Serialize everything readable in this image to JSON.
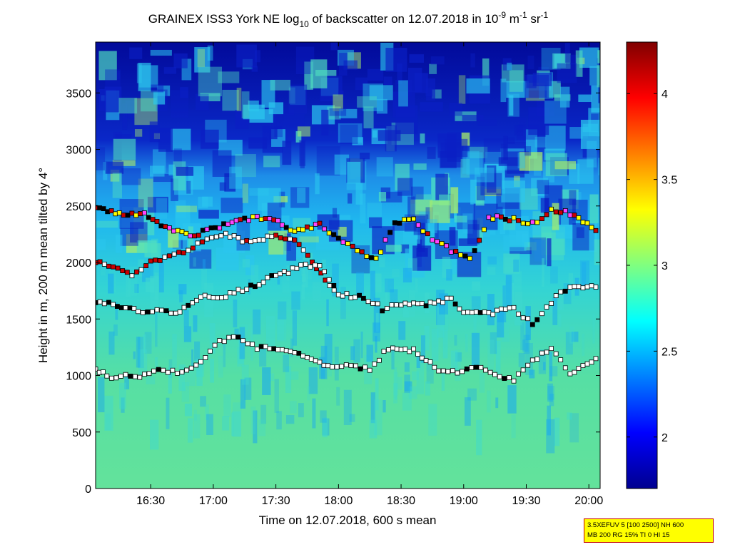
{
  "chart_data": {
    "type": "heatmap",
    "title": {
      "part1": "GRAINEX ISS3 York NE log",
      "sub1": "10",
      "part2": " of backscatter on 12.07.2018 in 10",
      "sup1": "-9",
      "part3": " m",
      "sup2": "-1",
      "part4": " sr",
      "sup3": "-1"
    },
    "xlabel": "Time on 12.07.2018, 600 s mean",
    "ylabel": "Height in m, 200 m mean tilted by 4°",
    "x_ticks": [
      "16:30",
      "17:00",
      "17:30",
      "18:00",
      "18:30",
      "19:00",
      "19:30",
      "20:00"
    ],
    "x_tick_hours": [
      16.5,
      17.0,
      17.5,
      18.0,
      18.5,
      19.0,
      19.5,
      20.0
    ],
    "xlim_hours": [
      16.06,
      20.09
    ],
    "y_ticks": [
      0,
      500,
      1000,
      1500,
      2000,
      2500,
      3000,
      3500
    ],
    "ylim": [
      0,
      3950
    ],
    "colorbar": {
      "ticks": [
        2,
        2.5,
        3,
        3.5,
        4
      ],
      "tick_labels": [
        "2",
        "2.5",
        "3",
        "3.5",
        "4"
      ],
      "range": [
        1.7,
        4.3
      ],
      "colormap": "jet"
    },
    "layers": [
      {
        "name": "upper layer",
        "points": [
          [
            16.06,
            2480
          ],
          [
            16.25,
            2420
          ],
          [
            16.45,
            2420
          ],
          [
            16.65,
            2290
          ],
          [
            16.85,
            2240
          ],
          [
            17.05,
            2320
          ],
          [
            17.25,
            2380
          ],
          [
            17.45,
            2400
          ],
          [
            17.65,
            2280
          ],
          [
            17.85,
            2330
          ],
          [
            18.0,
            2220
          ],
          [
            18.15,
            2120
          ],
          [
            18.3,
            2020
          ],
          [
            18.45,
            2360
          ],
          [
            18.6,
            2380
          ],
          [
            18.75,
            2200
          ],
          [
            18.9,
            2110
          ],
          [
            19.05,
            2020
          ],
          [
            19.2,
            2400
          ],
          [
            19.4,
            2380
          ],
          [
            19.55,
            2340
          ],
          [
            19.7,
            2470
          ],
          [
            19.85,
            2430
          ],
          [
            20.09,
            2260
          ]
        ]
      },
      {
        "name": "second layer",
        "points": [
          [
            16.06,
            2000
          ],
          [
            16.2,
            1960
          ],
          [
            16.35,
            1900
          ],
          [
            16.5,
            2000
          ],
          [
            16.65,
            2070
          ],
          [
            16.8,
            2110
          ],
          [
            16.95,
            2200
          ],
          [
            17.1,
            2240
          ],
          [
            17.3,
            2180
          ],
          [
            17.5,
            2240
          ],
          [
            17.65,
            2200
          ],
          [
            18.0,
            1700
          ]
        ]
      },
      {
        "name": "middle layer",
        "points": [
          [
            16.06,
            1660
          ],
          [
            16.2,
            1620
          ],
          [
            16.4,
            1570
          ],
          [
            16.55,
            1580
          ],
          [
            16.7,
            1540
          ],
          [
            16.9,
            1700
          ],
          [
            17.1,
            1700
          ],
          [
            17.3,
            1790
          ],
          [
            17.5,
            1880
          ],
          [
            17.7,
            1960
          ],
          [
            17.85,
            1990
          ],
          [
            18.0,
            1710
          ],
          [
            18.2,
            1700
          ],
          [
            18.35,
            1590
          ],
          [
            18.5,
            1640
          ],
          [
            18.7,
            1620
          ],
          [
            18.9,
            1680
          ],
          [
            19.0,
            1560
          ],
          [
            19.2,
            1550
          ],
          [
            19.4,
            1600
          ],
          [
            19.55,
            1450
          ],
          [
            19.7,
            1650
          ],
          [
            19.85,
            1800
          ],
          [
            20.09,
            1780
          ]
        ]
      },
      {
        "name": "lower layer",
        "points": [
          [
            16.06,
            1060
          ],
          [
            16.15,
            990
          ],
          [
            16.3,
            990
          ],
          [
            16.45,
            1000
          ],
          [
            16.6,
            1050
          ],
          [
            16.75,
            1030
          ],
          [
            16.9,
            1110
          ],
          [
            17.05,
            1310
          ],
          [
            17.2,
            1340
          ],
          [
            17.35,
            1240
          ],
          [
            17.55,
            1240
          ],
          [
            17.75,
            1160
          ],
          [
            17.95,
            1080
          ],
          [
            18.1,
            1080
          ],
          [
            18.25,
            1060
          ],
          [
            18.4,
            1240
          ],
          [
            18.6,
            1220
          ],
          [
            18.8,
            1050
          ],
          [
            18.95,
            1020
          ],
          [
            19.1,
            1070
          ],
          [
            19.25,
            1010
          ],
          [
            19.4,
            970
          ],
          [
            19.55,
            1120
          ],
          [
            19.7,
            1240
          ],
          [
            19.85,
            1020
          ],
          [
            20.09,
            1160
          ]
        ]
      }
    ]
  },
  "info_box": {
    "line1": "3.5XEFUV 5 [100 2500] NH 600",
    "line2": "MB 200 RG 15% TI 0 HI 15"
  }
}
